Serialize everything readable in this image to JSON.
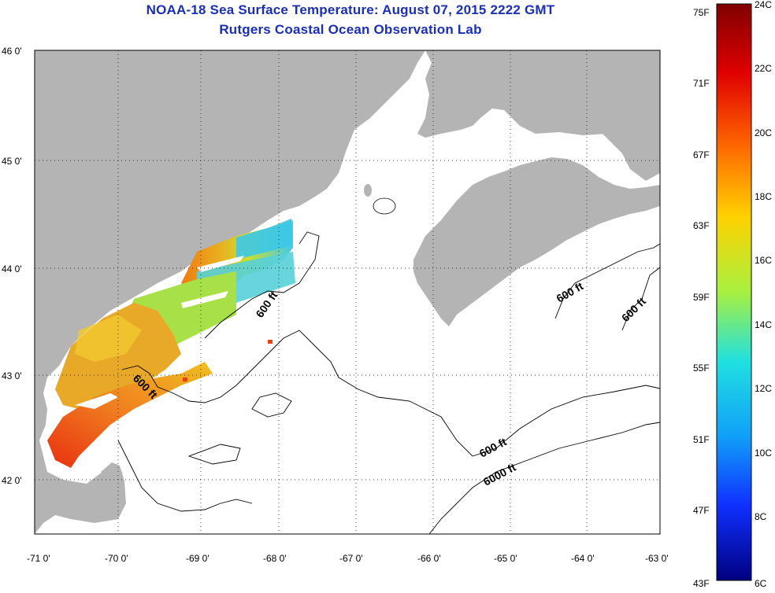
{
  "header": {
    "title": "NOAA-18 Sea Surface Temperature:  August 07, 2015 2222 GMT",
    "subtitle": "Rutgers Coastal Ocean Observation Lab"
  },
  "map": {
    "lon_labels": [
      "-71 0'",
      "-70 0'",
      "-69 0'",
      "-68 0'",
      "-67 0'",
      "-66 0'",
      "-65 0'",
      "-64 0'",
      "-63 0'"
    ],
    "lat_labels": [
      "46 0'",
      "45 0'",
      "44 0'",
      "43 0'",
      "42 0'"
    ],
    "contour_labels": [
      "600 ft",
      "600 ft",
      "600 ft",
      "600 ft",
      "600 ft",
      "6000 ft"
    ],
    "land_color": "#b4b4b4",
    "water_color": "#ffffff"
  },
  "colorbar": {
    "fahrenheit_labels": [
      "75F",
      "71F",
      "67F",
      "63F",
      "59F",
      "55F",
      "51F",
      "47F",
      "43F"
    ],
    "celsius_labels": [
      "24C",
      "22C",
      "20C",
      "18C",
      "16C",
      "14C",
      "12C",
      "10C",
      "8C",
      "6C"
    ],
    "range_c": [
      6,
      24
    ]
  }
}
